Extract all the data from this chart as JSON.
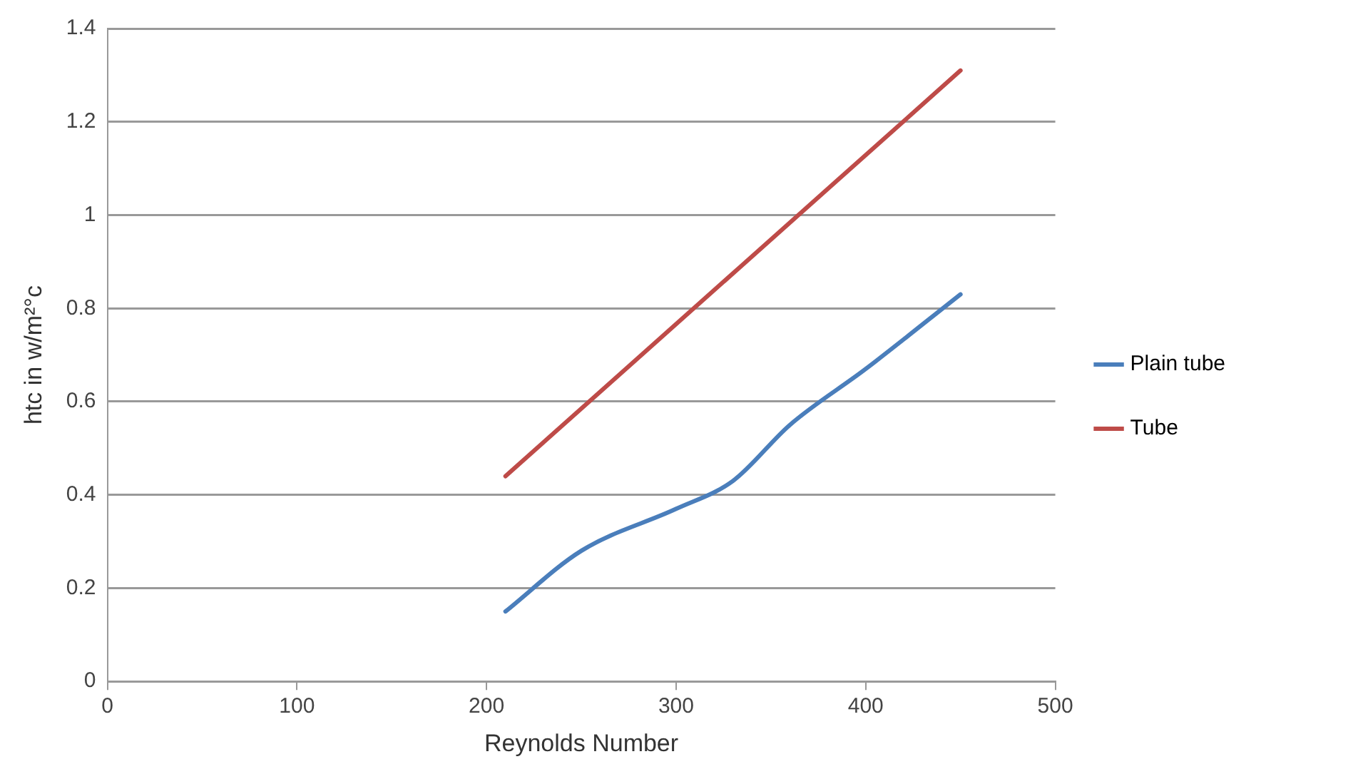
{
  "chart_data": {
    "type": "line",
    "xlabel": "Reynolds Number",
    "ylabel": "htc in w/m²°c",
    "xlim": [
      0,
      500
    ],
    "xticks": [
      0,
      100,
      200,
      300,
      400,
      500
    ],
    "ylim": [
      0,
      1.4
    ],
    "yticks": [
      0,
      0.2,
      0.4,
      0.6,
      0.8,
      1,
      1.2,
      1.4
    ],
    "grid": "y",
    "legend": "right",
    "marker": "none",
    "series": [
      {
        "name": "Plain tube",
        "color": "#4a7ebb",
        "x": [
          210,
          250,
          300,
          330,
          360,
          400,
          450
        ],
        "values": [
          0.15,
          0.28,
          0.37,
          0.43,
          0.55,
          0.67,
          0.83
        ]
      },
      {
        "name": "Tube",
        "color": "#be4b48",
        "x": [
          210,
          450
        ],
        "values": [
          0.44,
          1.31
        ]
      }
    ]
  }
}
